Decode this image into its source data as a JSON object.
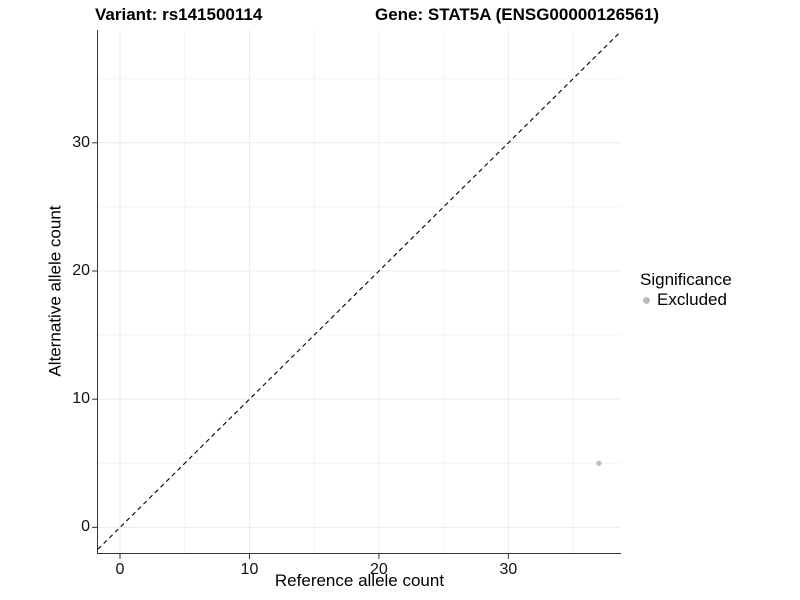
{
  "titles": {
    "variant": "Variant: rs141500114",
    "gene": "Gene: STAT5A (ENSG00000126561)"
  },
  "legend": {
    "title": "Significance",
    "items": [
      {
        "label": "Excluded",
        "color": "#bcbcbc"
      }
    ]
  },
  "chart_data": {
    "type": "scatter",
    "title": "Variant: rs141500114   Gene: STAT5A (ENSG00000126561)",
    "xlabel": "Reference allele count",
    "ylabel": "Alternative allele count",
    "xlim": [
      -1.7,
      38.7
    ],
    "ylim": [
      -2.0,
      38.8
    ],
    "x_ticks": [
      0,
      10,
      20,
      30
    ],
    "y_ticks": [
      0,
      10,
      20,
      30
    ],
    "x_minor_ticks": [
      5,
      15,
      25,
      35
    ],
    "y_minor_ticks": [
      5,
      15,
      25,
      35
    ],
    "grid": true,
    "legend_position": "right",
    "series": [
      {
        "name": "Excluded",
        "color": "#bcbcbc",
        "points": [
          {
            "x": 37,
            "y": 5
          }
        ]
      }
    ],
    "reference_line": {
      "slope": 1,
      "intercept": 0,
      "style": "dashed",
      "color": "#000000"
    }
  },
  "style": {
    "axis_color": "#333333",
    "tick_label_color": "#111111",
    "grid_major_color": "#ebebeb",
    "grid_minor_color": "#f3f3f3",
    "point_color": "#bcbcbc",
    "background": "#ffffff"
  }
}
